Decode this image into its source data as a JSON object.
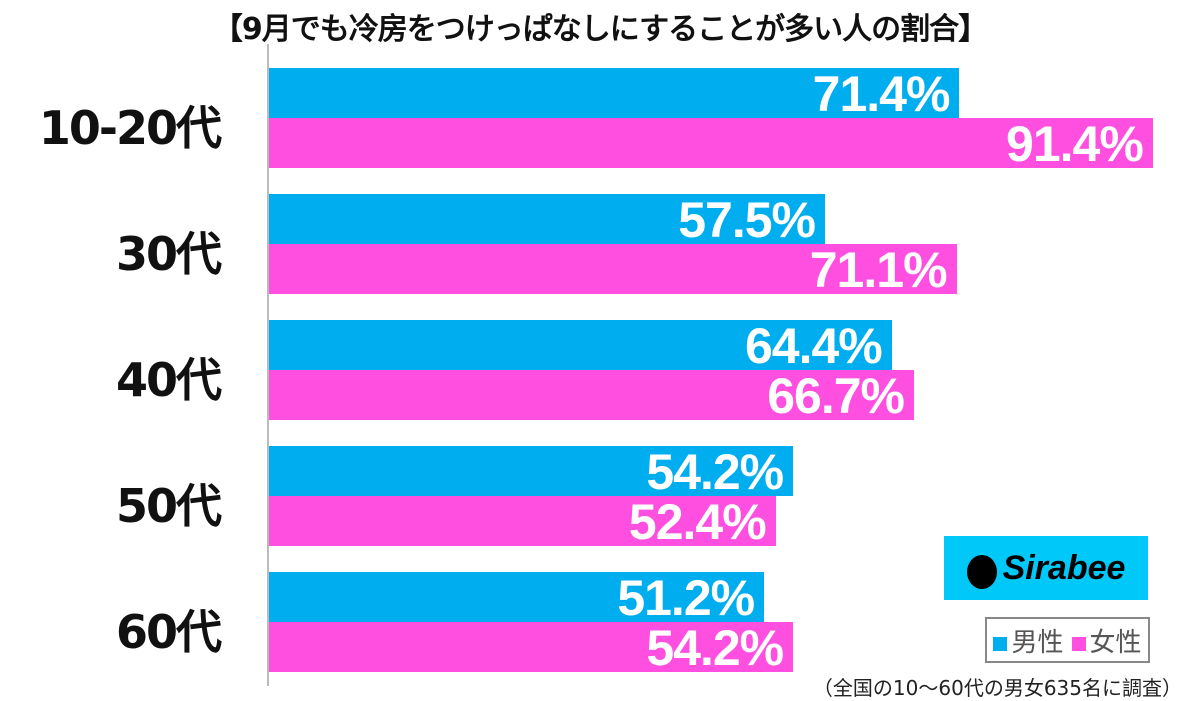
{
  "chart_data": {
    "type": "bar",
    "orientation": "horizontal",
    "title": "【9月でも冷房をつけっぱなしにすることが多い人の割合】",
    "categories": [
      "10-20代",
      "30代",
      "40代",
      "50代",
      "60代"
    ],
    "series": [
      {
        "name": "男性",
        "values": [
          71.4,
          57.5,
          64.4,
          54.2,
          51.2
        ],
        "color": "#00aeef"
      },
      {
        "name": "女性",
        "values": [
          91.4,
          71.1,
          66.7,
          52.4,
          54.2
        ],
        "color": "#ff4fe0"
      }
    ],
    "unit": "%",
    "legend": "bottom-right",
    "grid": false
  },
  "logo": "Sirabee",
  "note": "（全国の10〜60代の男女635名に調査）"
}
